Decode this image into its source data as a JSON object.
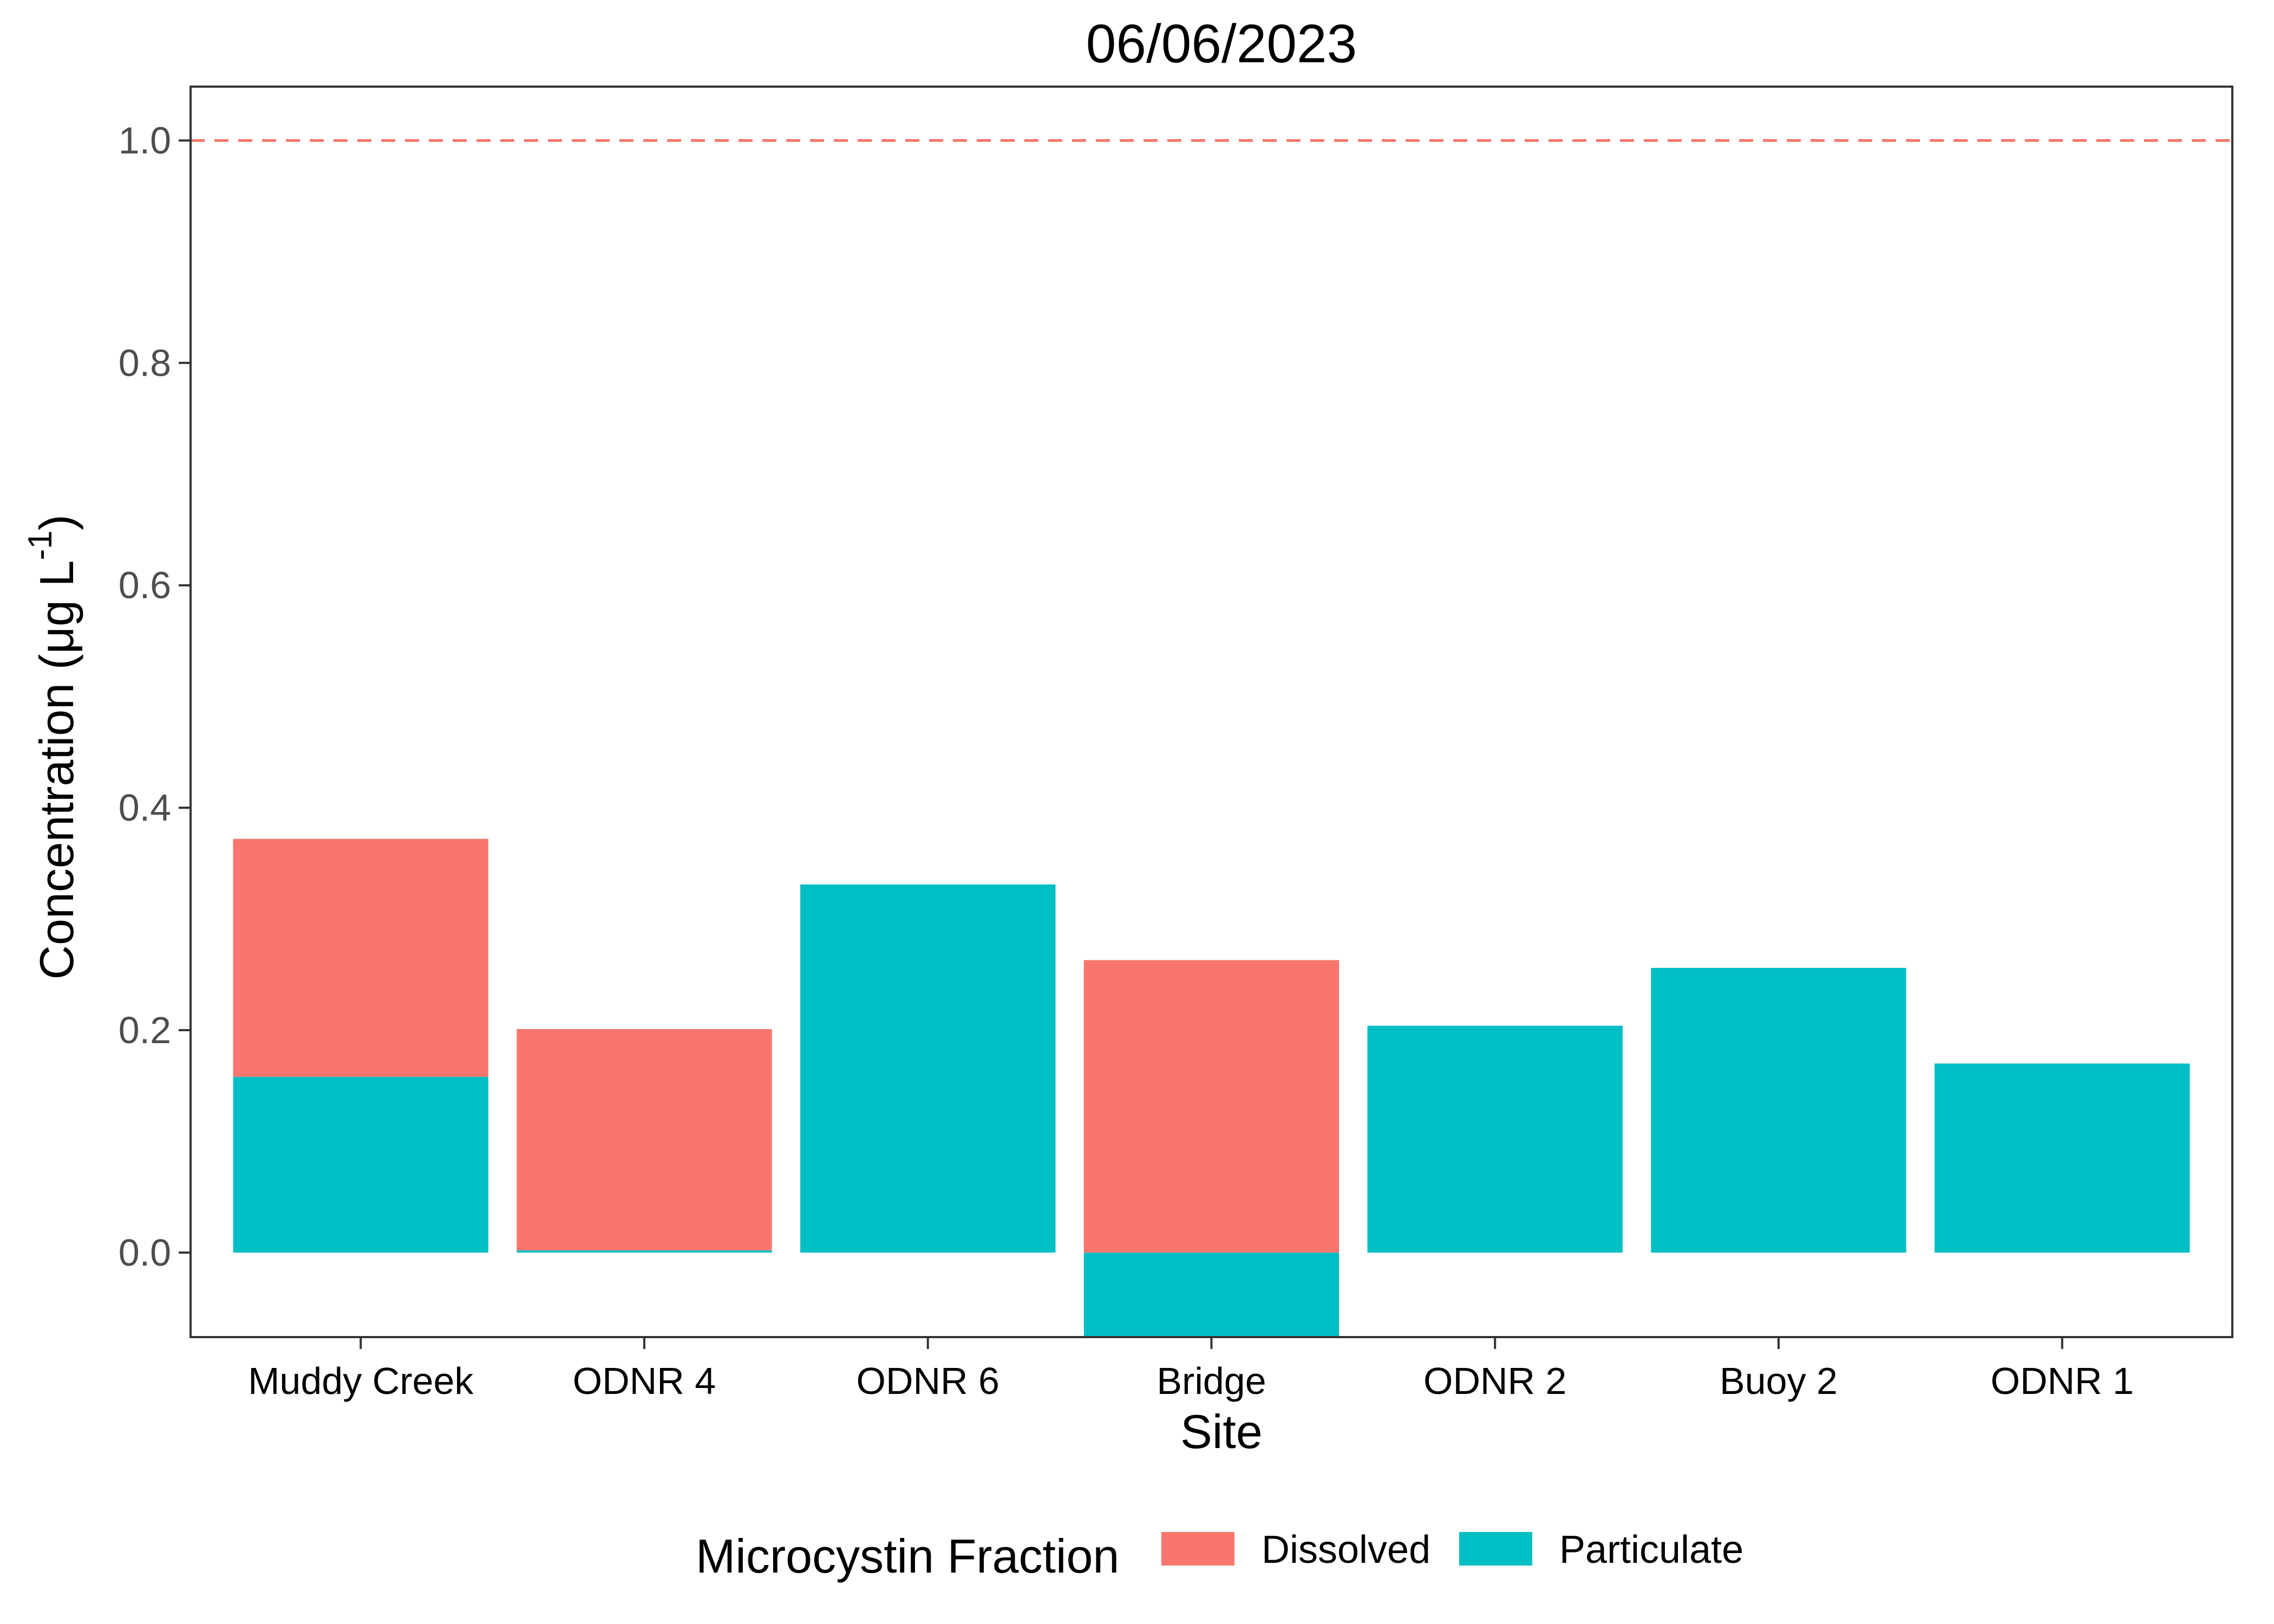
{
  "chart_data": {
    "type": "bar",
    "stacked": true,
    "title": "06/06/2023",
    "xlabel": "Site",
    "ylabel_main": "Concentration (μg L",
    "ylabel_sup": "-1",
    "ylabel_close": ")",
    "categories": [
      "Muddy Creek",
      "ODNR 4",
      "ODNR 6",
      "Bridge",
      "ODNR 2",
      "Buoy 2",
      "ODNR 1"
    ],
    "series": [
      {
        "name": "Particulate",
        "color": "#00BFC4",
        "values": [
          0.158,
          0.002,
          0.331,
          -0.076,
          0.204,
          0.256,
          0.17
        ]
      },
      {
        "name": "Dissolved",
        "color": "#F8766D",
        "values": [
          0.214,
          0.199,
          0.0,
          0.263,
          0.0,
          0.0,
          0.0
        ]
      }
    ],
    "ylim": [
      -0.076,
      1.0
    ],
    "yticks": [
      0.0,
      0.2,
      0.4,
      0.6,
      0.8,
      1.0
    ],
    "ytick_labels": [
      "0.0",
      "0.2",
      "0.4",
      "0.6",
      "0.8",
      "1.0"
    ],
    "reference_line": {
      "y": 1.0,
      "style": "dashed",
      "color": "#F8766D"
    },
    "grid": false,
    "legend": {
      "title": "Microcystin Fraction",
      "position": "bottom",
      "entries": [
        {
          "label": "Dissolved",
          "color": "#F8766D"
        },
        {
          "label": "Particulate",
          "color": "#00BFC4"
        }
      ]
    }
  }
}
